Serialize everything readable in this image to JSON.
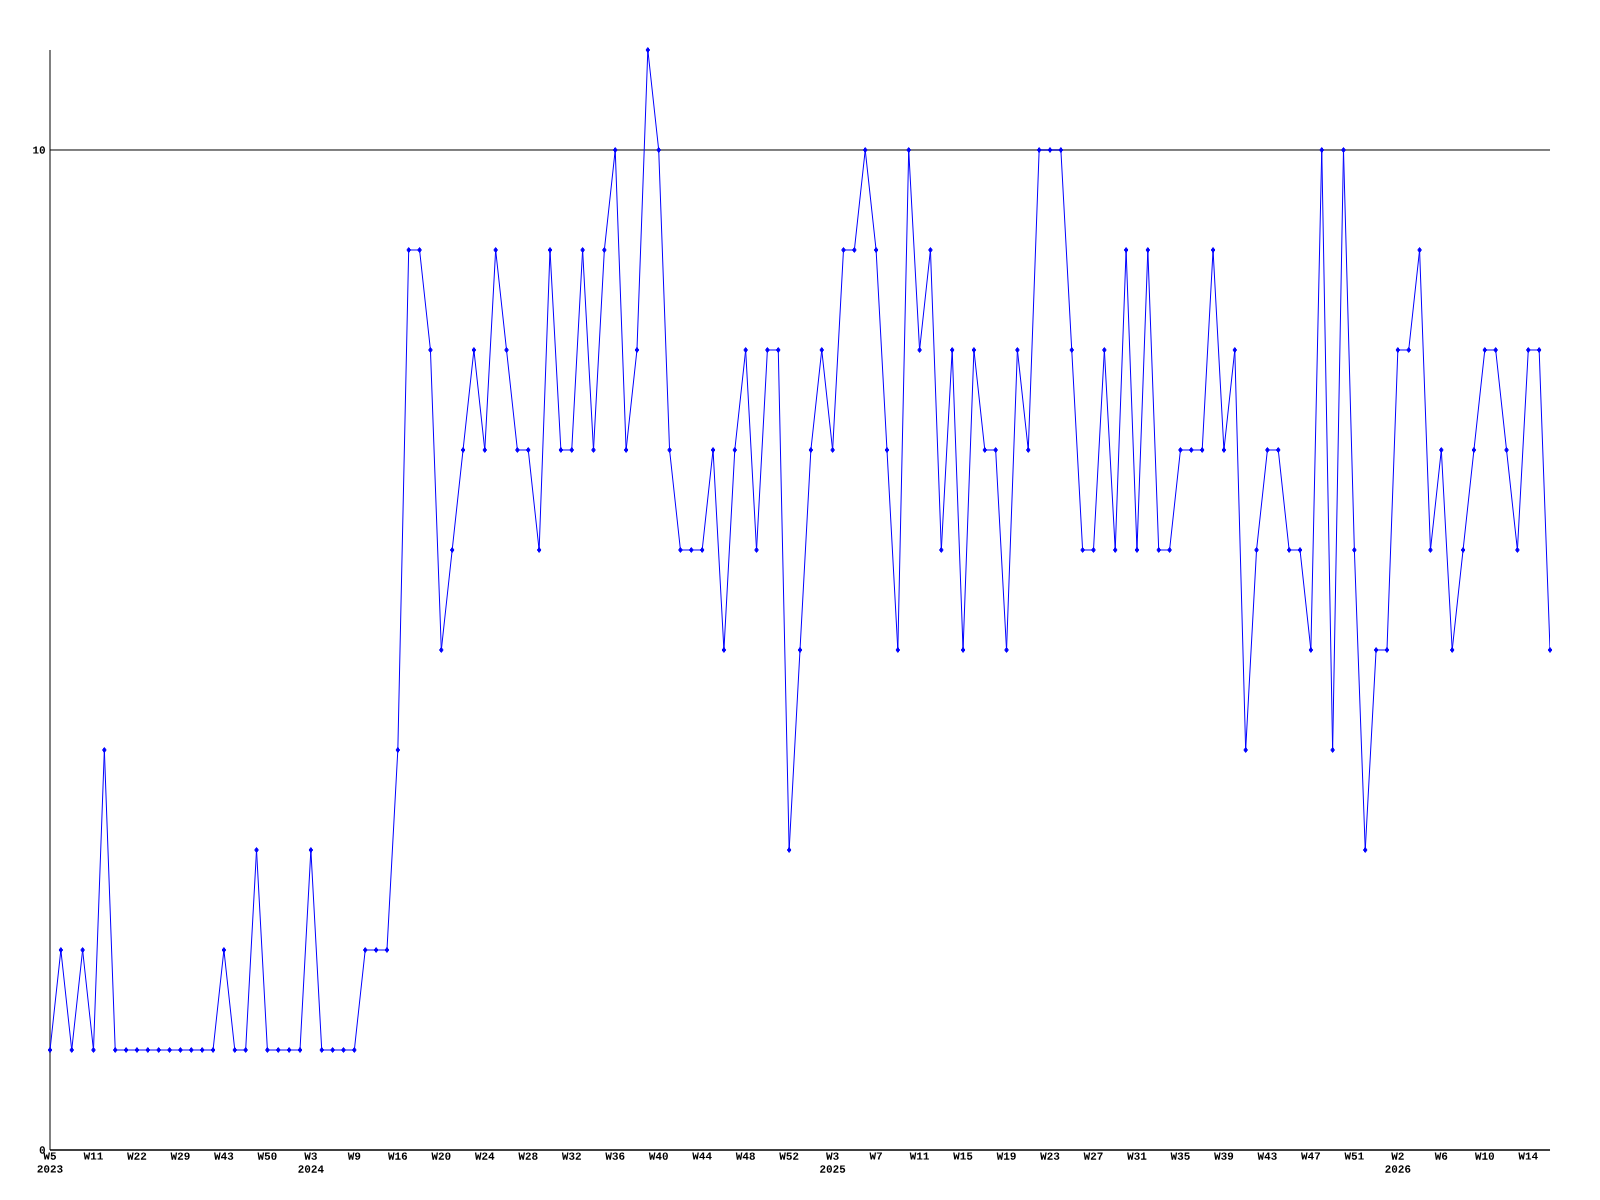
{
  "chart_data": {
    "type": "line",
    "color": "#0000ff",
    "marker": "diamond",
    "grid": "y",
    "ylim": [
      0,
      11
    ],
    "yticks": [
      0,
      10
    ],
    "categories": [
      "W5 2023",
      null,
      null,
      null,
      "W11",
      null,
      null,
      null,
      "W22",
      null,
      null,
      null,
      "W29",
      null,
      null,
      null,
      "W43",
      null,
      null,
      null,
      "W50",
      null,
      null,
      null,
      "W3 2024",
      null,
      null,
      null,
      "W9",
      null,
      null,
      null,
      "W16",
      null,
      null,
      null,
      "W20",
      null,
      null,
      null,
      "W24",
      null,
      null,
      null,
      "W28",
      null,
      null,
      null,
      "W32",
      null,
      null,
      null,
      "W36",
      null,
      null,
      null,
      "W40",
      null,
      null,
      null,
      "W44",
      null,
      null,
      null,
      "W48",
      null,
      null,
      null,
      "W52",
      null,
      null,
      null,
      "W3 2025",
      null,
      null,
      null,
      "W7",
      null,
      null,
      null,
      "W11",
      null,
      null,
      null,
      "W15",
      null,
      null,
      null,
      "W19",
      null,
      null,
      null,
      "W23",
      null,
      null,
      null,
      "W27",
      null,
      null,
      null,
      "W31",
      null,
      null,
      null,
      "W35",
      null,
      null,
      null,
      "W39",
      null,
      null,
      null,
      "W43",
      null,
      null,
      null,
      "W47",
      null,
      null,
      null,
      "W51",
      null,
      null,
      null,
      "W2 2026",
      null,
      null,
      null,
      "W6",
      null,
      null,
      null,
      "W10",
      null,
      null,
      null,
      "W14",
      null,
      null
    ],
    "values": [
      1,
      2,
      1,
      2,
      1,
      4,
      1,
      1,
      1,
      1,
      1,
      1,
      1,
      1,
      1,
      1,
      2,
      1,
      1,
      3,
      1,
      1,
      1,
      1,
      3,
      1,
      1,
      1,
      1,
      2,
      2,
      2,
      4,
      9,
      9,
      8,
      5,
      6,
      7,
      8,
      7,
      9,
      8,
      7,
      7,
      6,
      9,
      7,
      7,
      9,
      7,
      9,
      10,
      7,
      8,
      11,
      10,
      7,
      6,
      6,
      6,
      7,
      5,
      7,
      8,
      6,
      8,
      8,
      3,
      5,
      7,
      8,
      7,
      9,
      9,
      10,
      9,
      7,
      5,
      10,
      8,
      9,
      6,
      8,
      5,
      8,
      7,
      7,
      5,
      8,
      7,
      10,
      10,
      10,
      8,
      6,
      6,
      8,
      6,
      9,
      6,
      9,
      6,
      6,
      7,
      7,
      7,
      9,
      7,
      8,
      4,
      6,
      7,
      7,
      6,
      6,
      5,
      10,
      4,
      10,
      6,
      3,
      5,
      5,
      8,
      8,
      9,
      6,
      7,
      5,
      6,
      7,
      8,
      8,
      7,
      6,
      8,
      8,
      5
    ]
  }
}
